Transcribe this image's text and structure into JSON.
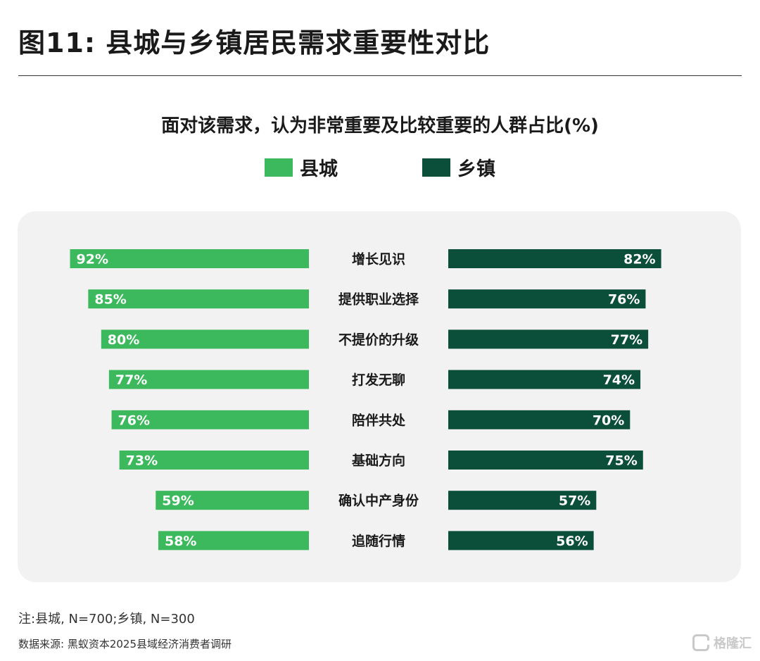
{
  "figure_title": "图11: 县城与乡镇居民需求重要性对比",
  "note": "注:县城, N=700;乡镇, N=300",
  "source": "数据来源: 黑蚁资本2025县域经济消费者调研",
  "brand": "格隆汇",
  "colors": {
    "county": "#3cb95c",
    "town": "#0b4e39",
    "panel": "#f2f2f2"
  },
  "chart_data": {
    "type": "bar",
    "orientation": "horizontal-butterfly",
    "title": "面对该需求，认为非常重要及比较重要的人群占比(%)",
    "categories": [
      "增长见识",
      "提供职业选择",
      "不提价的升级",
      "打发无聊",
      "陪伴共处",
      "基础方向",
      "确认中产身份",
      "追随行情"
    ],
    "series": [
      {
        "name": "县城",
        "values": [
          92,
          85,
          80,
          77,
          76,
          73,
          59,
          58
        ],
        "labels": [
          "92%",
          "85%",
          "80%",
          "77%",
          "76%",
          "73%",
          "59%",
          "58%"
        ]
      },
      {
        "name": "乡镇",
        "values": [
          82,
          76,
          77,
          74,
          70,
          75,
          57,
          56
        ],
        "labels": [
          "82%",
          "76%",
          "77%",
          "74%",
          "70%",
          "75%",
          "57%",
          "56%"
        ]
      }
    ],
    "xlim": [
      0,
      100
    ],
    "grid": false,
    "legend_position": "top-center"
  }
}
